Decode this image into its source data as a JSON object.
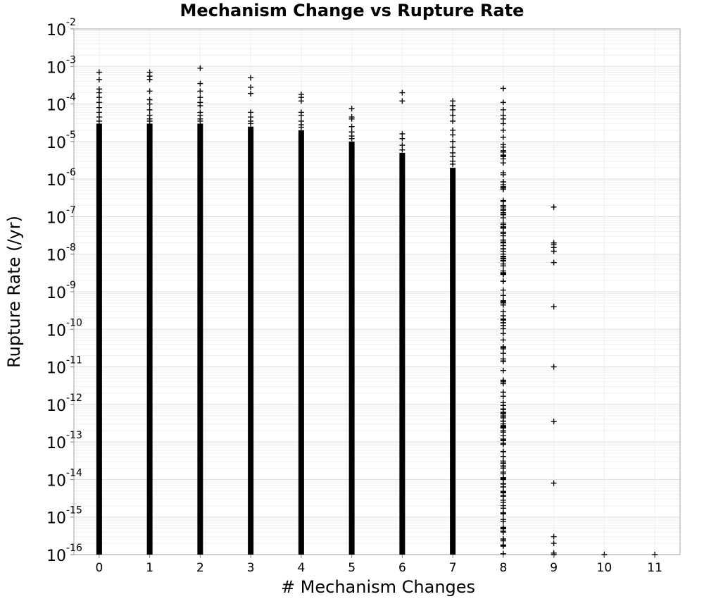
{
  "chart_data": {
    "type": "scatter",
    "title": "Mechanism Change vs Rupture Rate",
    "xlabel": "# Mechanism Changes",
    "ylabel": "Rupture Rate (/yr)",
    "y_scale": "log",
    "xlim": [
      -0.5,
      11.5
    ],
    "ylim": [
      1e-16,
      0.01
    ],
    "grid": true,
    "marker": "+",
    "marker_color": "#000000",
    "x_ticks": [
      "0",
      "1",
      "2",
      "3",
      "4",
      "5",
      "6",
      "7",
      "8",
      "9",
      "10",
      "11"
    ],
    "y_ticks": [
      {
        "base": "10",
        "exp": "-2"
      },
      {
        "base": "10",
        "exp": "-3"
      },
      {
        "base": "10",
        "exp": "-4"
      },
      {
        "base": "10",
        "exp": "-5"
      },
      {
        "base": "10",
        "exp": "-6"
      },
      {
        "base": "10",
        "exp": "-7"
      },
      {
        "base": "10",
        "exp": "-8"
      },
      {
        "base": "10",
        "exp": "-9"
      },
      {
        "base": "10",
        "exp": "-10"
      },
      {
        "base": "10",
        "exp": "-11"
      },
      {
        "base": "10",
        "exp": "-12"
      },
      {
        "base": "10",
        "exp": "-13"
      },
      {
        "base": "10",
        "exp": "-14"
      },
      {
        "base": "10",
        "exp": "-15"
      },
      {
        "base": "10",
        "exp": "-16"
      }
    ],
    "columns": [
      {
        "x": 0,
        "dense_range": [
          1e-16,
          3e-05
        ],
        "points": [
          0.0007,
          0.00045,
          0.00025,
          0.0002,
          0.00015,
          0.00011,
          8e-05,
          6e-05,
          4.5e-05,
          3.5e-05
        ]
      },
      {
        "x": 1,
        "dense_range": [
          1e-16,
          3e-05
        ],
        "points": [
          0.0007,
          0.00055,
          0.00045,
          0.00022,
          0.00013,
          0.0001,
          7e-05,
          5e-05,
          4e-05,
          3.5e-05
        ]
      },
      {
        "x": 2,
        "dense_range": [
          1e-16,
          3e-05
        ],
        "points": [
          0.0009,
          0.00035,
          0.00022,
          0.00015,
          0.00011,
          9e-05,
          6e-05,
          5e-05,
          4e-05,
          3.5e-05
        ]
      },
      {
        "x": 3,
        "dense_range": [
          1e-16,
          2.5e-05
        ],
        "points": [
          0.0005,
          0.00028,
          0.00019,
          6e-05,
          4.5e-05,
          3.5e-05,
          3e-05
        ]
      },
      {
        "x": 4,
        "dense_range": [
          1e-16,
          2e-05
        ],
        "points": [
          0.00018,
          0.00015,
          0.00012,
          6e-05,
          5e-05,
          3.5e-05,
          2.8e-05,
          2.4e-05
        ]
      },
      {
        "x": 5,
        "dense_range": [
          1e-16,
          1e-05
        ],
        "points": [
          7.5e-05,
          4.5e-05,
          4e-05,
          2.5e-05,
          1.8e-05,
          1.4e-05,
          1.2e-05
        ]
      },
      {
        "x": 6,
        "dense_range": [
          1e-16,
          5e-06
        ],
        "points": [
          0.0002,
          0.00012,
          1.6e-05,
          1.2e-05,
          8e-06,
          6e-06
        ]
      },
      {
        "x": 7,
        "dense_range": [
          1e-16,
          2e-06
        ],
        "points": [
          0.00012,
          9e-05,
          7e-05,
          5e-05,
          3.5e-05,
          2e-05,
          1.5e-05,
          1e-05,
          7e-06,
          5e-06,
          4e-06,
          3e-06,
          2.5e-06
        ]
      },
      {
        "x": 8,
        "sparse_count": 170,
        "sparse_range": [
          1e-16,
          1e-05
        ],
        "points": [
          0.00026,
          0.00011,
          7e-05,
          5e-05,
          4e-05,
          3e-05,
          2e-05,
          1.3e-05
        ]
      },
      {
        "x": 9,
        "points": [
          1.8e-07,
          2e-08,
          1.8e-08,
          1.5e-08,
          1.2e-08,
          6e-09,
          4e-10,
          1e-11,
          3.5e-13,
          8e-15,
          3e-16,
          2e-16,
          1.1e-16,
          1e-16
        ]
      },
      {
        "x": 10,
        "points": [
          1e-16
        ]
      },
      {
        "x": 11,
        "points": [
          1e-16
        ]
      }
    ]
  }
}
